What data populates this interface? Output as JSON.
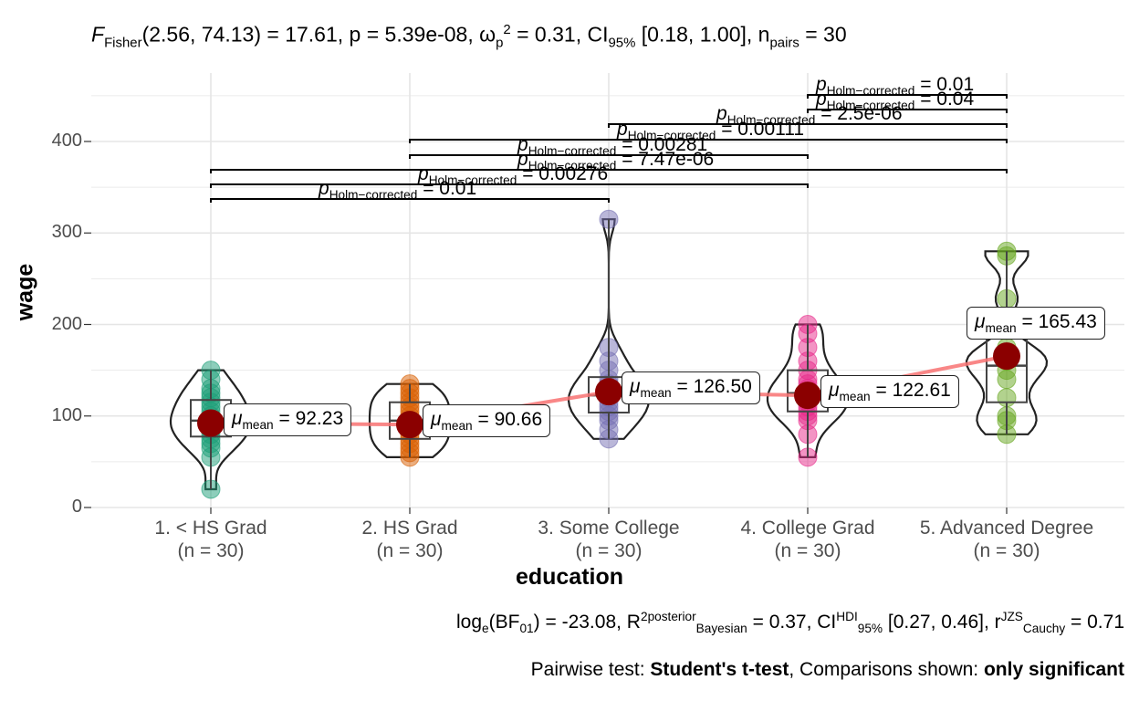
{
  "header": {
    "stat_prefix": "F",
    "stat_sub": "Fisher",
    "stat_text": "(2.56, 74.13) = 17.61, p = 5.39e-08, ω",
    "omega_sub": "p",
    "omega_sup": "2",
    "stat_rest": " = 0.31, CI",
    "ci_sub": "95%",
    "ci_text": " [0.18, 1.00], n",
    "n_sub": "pairs",
    "n_text": " = 30"
  },
  "caption": {
    "bf_text": "log",
    "bf_sub": "e",
    "bf_rest": "(BF",
    "bf01_sub": "01",
    "bf_val": ") = -23.08, R",
    "r2_sup": "2",
    "r2_post_sup": "posterior",
    "r2_sub": "Bayesian",
    "r2_val": " = 0.37, CI",
    "hdi_sup": "HDI",
    "hdi_sub": "95%",
    "hdi_val": " [0.27, 0.46], r",
    "r_sup": "JZS",
    "r_sub": "Cauchy",
    "r_val": " = 0.71",
    "pairwise_prefix": "Pairwise test: ",
    "pairwise_test": "Student's t-test",
    "pairwise_mid": ", Comparisons shown: ",
    "pairwise_shown": "only significant"
  },
  "chart_data": {
    "type": "violin",
    "xlabel": "education",
    "ylabel": "wage",
    "ylim": [
      0,
      450
    ],
    "yticks": [
      0,
      100,
      200,
      300,
      400
    ],
    "categories": [
      {
        "name": "1. < HS Grad",
        "n": "(n = 30)",
        "mean": 92.23,
        "mean_label": "= 92.23",
        "color": "#1b9e77",
        "points": [
          20,
          55,
          65,
          70,
          75,
          80,
          85,
          90,
          92,
          95,
          100,
          105,
          110,
          115,
          120,
          125,
          130,
          140,
          150
        ]
      },
      {
        "name": "2. HS Grad",
        "n": "(n = 30)",
        "mean": 90.66,
        "mean_label": "= 90.66",
        "color": "#d95f02",
        "points": [
          55,
          60,
          65,
          70,
          75,
          80,
          85,
          90,
          95,
          100,
          105,
          110,
          115,
          120,
          125,
          130,
          135
        ]
      },
      {
        "name": "3. Some College",
        "n": "(n = 30)",
        "mean": 126.5,
        "mean_label": "= 126.50",
        "color": "#7570b3",
        "points": [
          75,
          85,
          95,
          100,
          105,
          110,
          115,
          120,
          125,
          130,
          135,
          140,
          150,
          160,
          175,
          315
        ]
      },
      {
        "name": "4. College Grad",
        "n": "(n = 30)",
        "mean": 122.61,
        "mean_label": "= 122.61",
        "color": "#e7298a",
        "points": [
          55,
          80,
          95,
          100,
          105,
          110,
          115,
          120,
          125,
          130,
          135,
          140,
          150,
          160,
          175,
          190,
          200
        ]
      },
      {
        "name": "5. Advanced Degree",
        "n": "(n = 30)",
        "mean": 165.43,
        "mean_label": "= 165.43",
        "color": "#66a61e",
        "points": [
          80,
          95,
          100,
          120,
          140,
          150,
          160,
          165,
          175,
          228,
          275,
          280
        ]
      }
    ],
    "pairwise": [
      {
        "from": 0,
        "to": 2,
        "p": "= 0.01"
      },
      {
        "from": 0,
        "to": 3,
        "p": "= 0.00276"
      },
      {
        "from": 0,
        "to": 4,
        "p": "= 7.47e-06"
      },
      {
        "from": 1,
        "to": 3,
        "p": "= 0.00281"
      },
      {
        "from": 1,
        "to": 4,
        "p": "= 0.00111"
      },
      {
        "from": 2,
        "to": 4,
        "p": "= 2.5e-06"
      },
      {
        "from": 3,
        "to": 4,
        "p": "= 0.04"
      },
      {
        "from": 3,
        "to": 4,
        "p": "= 0.01"
      }
    ],
    "p_prefix": "p",
    "p_sub": "Holm−corrected",
    "mean_prefix": "μ",
    "mean_sub": "mean",
    "mean_line_color": "#f87272",
    "mean_point_color": "#8b0000"
  }
}
